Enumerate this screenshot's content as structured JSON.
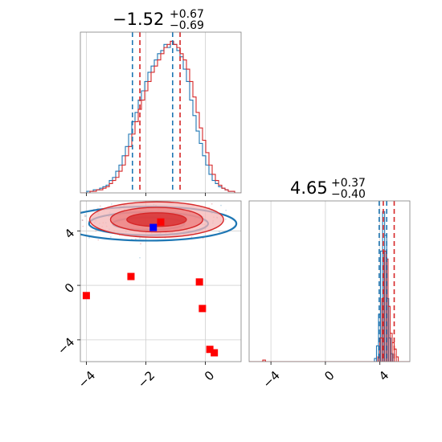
{
  "colors": {
    "blue": "#1f77b4",
    "red": "#d62728",
    "grid": "#d0d0d0",
    "frame": "#808080"
  },
  "chart_data": [
    {
      "type": "histogram",
      "panel": "top-left",
      "title": {
        "value": "−1.52",
        "upper": "+0.67",
        "lower": "−0.69"
      },
      "xlim": [
        -4.2,
        1.2
      ],
      "quantiles": {
        "blue": [
          -2.45,
          -1.1
        ],
        "red": [
          -2.2,
          -0.85
        ]
      },
      "grid": true,
      "series": [
        {
          "color": "blue",
          "x_range": [
            -4.2,
            1.2
          ],
          "counts": [
            0,
            0,
            1,
            1,
            2,
            2,
            3,
            4,
            5,
            8,
            10,
            14,
            18,
            24,
            30,
            38,
            46,
            52,
            60,
            66,
            72,
            78,
            82,
            86,
            90,
            92,
            96,
            94,
            98,
            96,
            92,
            88,
            80,
            72,
            60,
            50,
            40,
            32,
            24,
            18,
            12,
            8,
            6,
            4,
            3,
            2,
            1,
            1,
            0,
            0
          ]
        },
        {
          "color": "red",
          "x_range": [
            -4.2,
            1.2
          ],
          "counts": [
            0,
            0,
            0,
            1,
            1,
            2,
            2,
            3,
            4,
            6,
            8,
            10,
            14,
            18,
            24,
            30,
            38,
            46,
            54,
            60,
            66,
            72,
            78,
            82,
            86,
            90,
            94,
            96,
            98,
            96,
            94,
            90,
            86,
            80,
            72,
            62,
            52,
            42,
            34,
            26,
            18,
            12,
            8,
            5,
            3,
            2,
            1,
            1,
            0,
            0
          ]
        }
      ]
    },
    {
      "type": "scatter",
      "panel": "bottom-left",
      "xlim": [
        -4.2,
        1.2
      ],
      "ylim": [
        -5.6,
        6.2
      ],
      "xticks": [
        -4,
        -2,
        0
      ],
      "yticks": [
        -4,
        0,
        4
      ],
      "grid": true,
      "contours": {
        "center": [
          -1.8,
          4.65
        ],
        "blue": {
          "rx": [
            1.2,
            2.0,
            2.95
          ],
          "ry": [
            0.45,
            0.85,
            1.25
          ]
        },
        "red": {
          "rx": [
            1.0,
            1.55,
            2.25
          ],
          "ry": [
            0.5,
            0.9,
            1.3
          ]
        }
      },
      "markers": {
        "red": [
          [
            -1.5,
            4.65
          ],
          [
            -2.5,
            0.65
          ],
          [
            -0.2,
            0.25
          ],
          [
            -4.0,
            -0.75
          ],
          [
            -0.1,
            -1.7
          ],
          [
            0.15,
            -4.7
          ],
          [
            0.3,
            -4.95
          ]
        ],
        "blue": [
          [
            -1.75,
            4.25
          ]
        ]
      }
    },
    {
      "type": "histogram",
      "panel": "bottom-right",
      "title": {
        "value": "4.65",
        "upper": "+0.37",
        "lower": "−0.40"
      },
      "xlim": [
        -5.6,
        6.2
      ],
      "xticks": [
        -4,
        0,
        4
      ],
      "quantiles": {
        "blue": [
          3.95,
          4.5
        ],
        "red": [
          4.25,
          5.05
        ]
      },
      "grid": true,
      "series": [
        {
          "color": "blue",
          "bins": [
            [
              3.6,
              3.75,
              2
            ],
            [
              3.75,
              3.9,
              10
            ],
            [
              3.9,
              4.05,
              30
            ],
            [
              4.05,
              4.2,
              70
            ],
            [
              4.2,
              4.35,
              95
            ],
            [
              4.35,
              4.5,
              80
            ],
            [
              4.5,
              4.65,
              40
            ],
            [
              4.65,
              4.8,
              15
            ],
            [
              4.8,
              4.95,
              5
            ]
          ]
        },
        {
          "color": "red",
          "bins": [
            [
              -4.6,
              -4.4,
              1
            ],
            [
              3.85,
              4.0,
              3
            ],
            [
              4.0,
              4.15,
              15
            ],
            [
              4.15,
              4.3,
              40
            ],
            [
              4.3,
              4.45,
              70
            ],
            [
              4.45,
              4.6,
              65
            ],
            [
              4.6,
              4.75,
              35
            ],
            [
              4.75,
              4.9,
              18
            ],
            [
              4.9,
              5.05,
              12
            ],
            [
              5.05,
              5.2,
              8
            ],
            [
              5.2,
              5.35,
              3
            ]
          ]
        }
      ]
    }
  ]
}
